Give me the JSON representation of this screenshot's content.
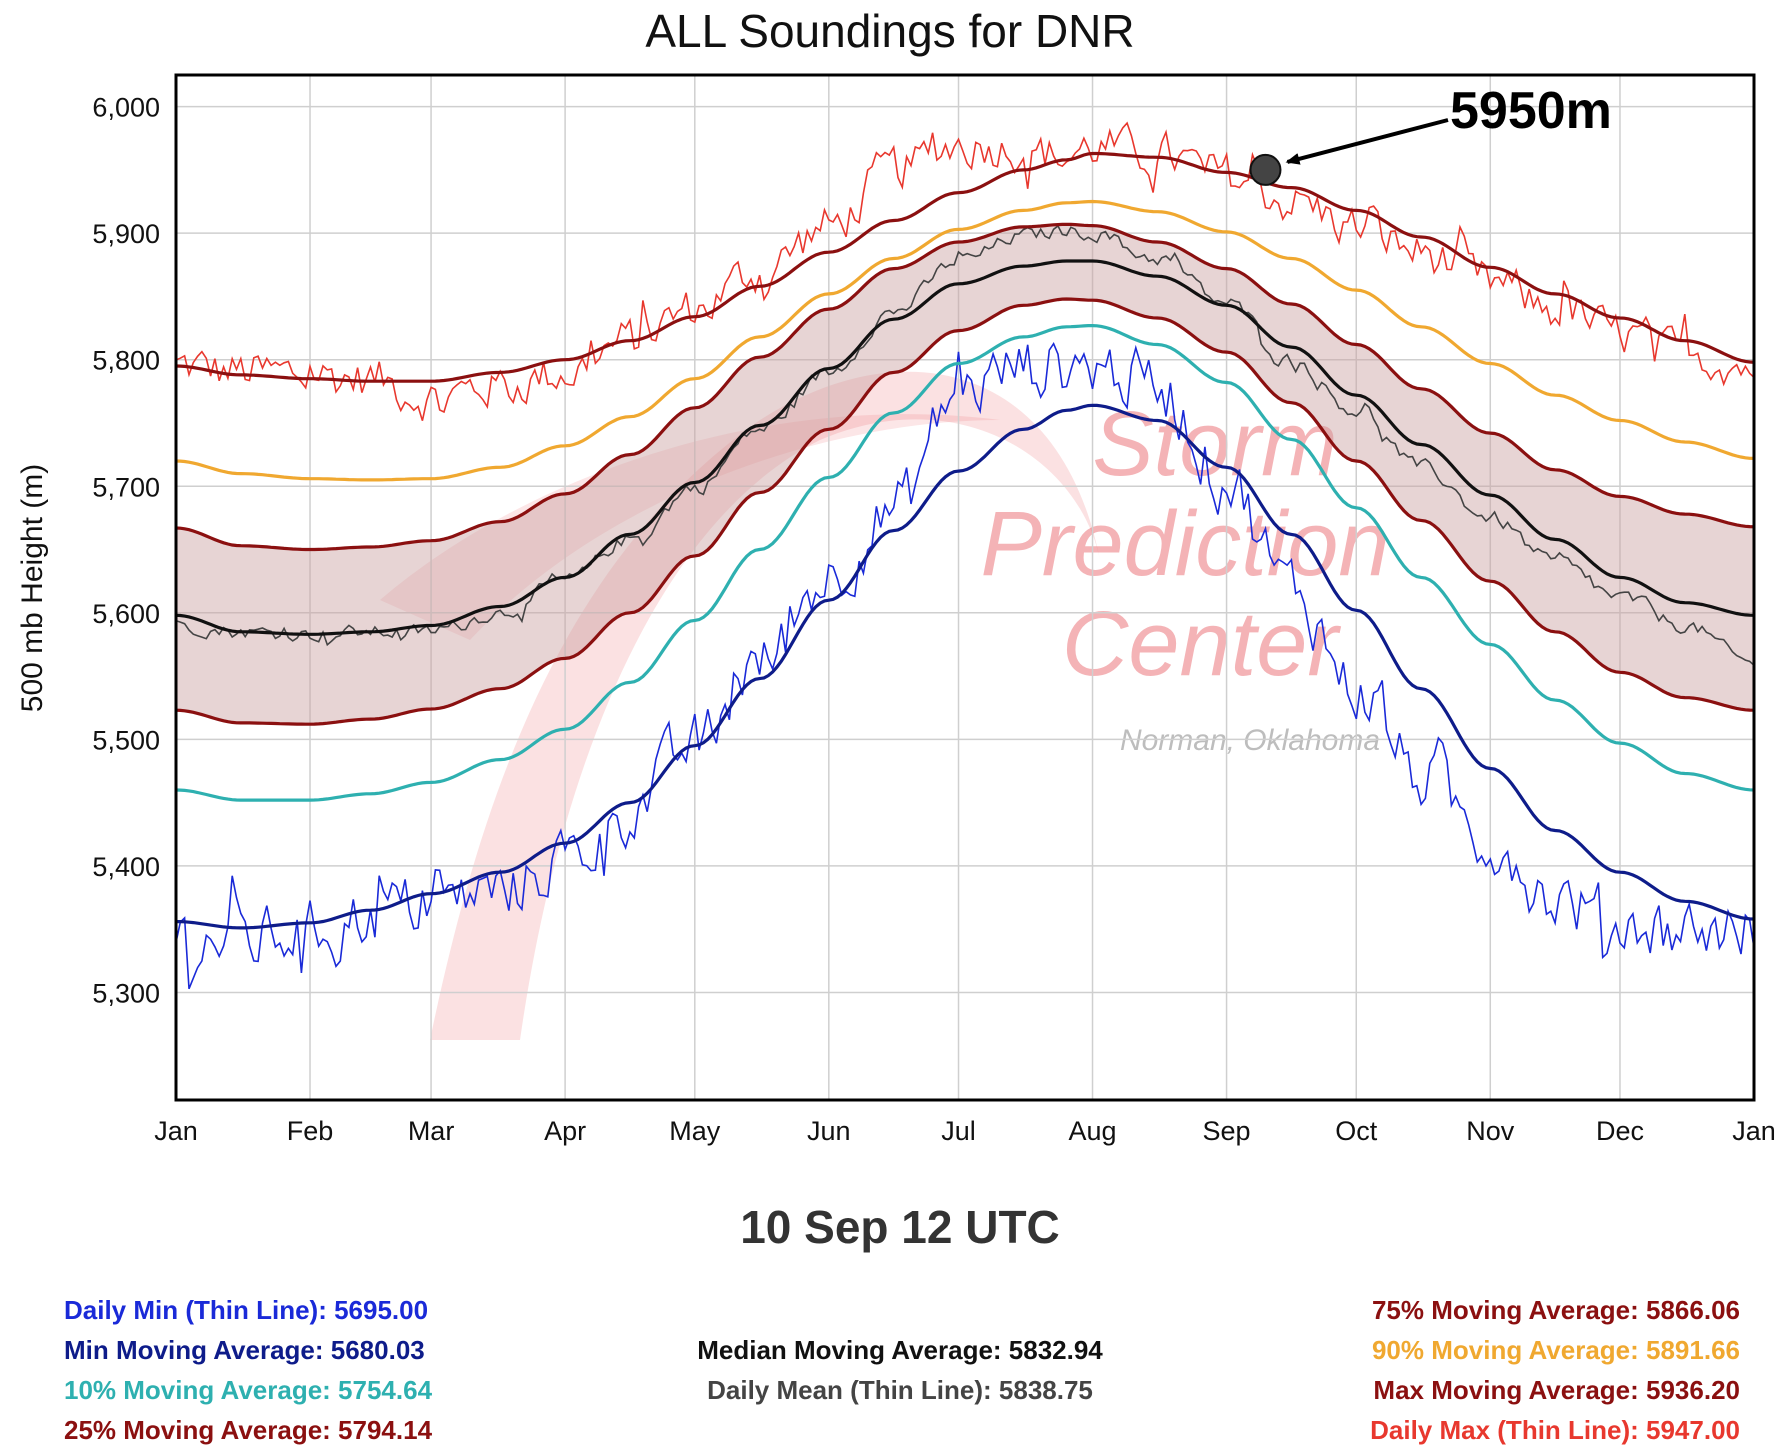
{
  "title": "ALL Soundings for DNR",
  "timestamp": "10 Sep 12 UTC",
  "watermark": {
    "lines": [
      "Storm",
      "Prediction",
      "Center"
    ],
    "sub": "Norman, Oklahoma",
    "color": "#e8585f"
  },
  "colors": {
    "daily_max": "#e8382e",
    "max_ma": "#8b1010",
    "p90_ma": "#f0a830",
    "p75_ma": "#8b1010",
    "median_ma": "#111111",
    "daily_mean": "#444444",
    "p25_ma": "#8b1010",
    "p10_ma": "#2eb0b0",
    "min_ma": "#0e1c8a",
    "daily_min": "#1a2ad8",
    "band_fill": "#c9a0a0"
  },
  "stats": {
    "left": [
      {
        "label": "Daily Min (Thin Line):",
        "value": "5695.00",
        "color": "#1a2ad8"
      },
      {
        "label": "Min Moving Average:",
        "value": "5680.03",
        "color": "#0e1c8a"
      },
      {
        "label": "10% Moving Average:",
        "value": "5754.64",
        "color": "#2eb0b0"
      },
      {
        "label": "25% Moving Average:",
        "value": "5794.14",
        "color": "#8b1010"
      }
    ],
    "center": [
      {
        "label": "Median Moving Average:",
        "value": "5832.94",
        "color": "#111111"
      },
      {
        "label": "Daily Mean (Thin Line):",
        "value": "5838.75",
        "color": "#444444"
      }
    ],
    "right": [
      {
        "label": "75% Moving Average:",
        "value": "5866.06",
        "color": "#8b1010"
      },
      {
        "label": "90% Moving Average:",
        "value": "5891.66",
        "color": "#f0a830"
      },
      {
        "label": "Max Moving Average:",
        "value": "5936.20",
        "color": "#8b1010"
      },
      {
        "label": "Daily Max (Thin Line):",
        "value": "5947.00",
        "color": "#e8382e"
      }
    ]
  },
  "chart_data": {
    "type": "line",
    "title": "ALL Soundings for DNR",
    "ylabel": "500 mb Height (m)",
    "xlabel": "",
    "xlim": [
      0,
      365
    ],
    "ylim": [
      5215,
      6025
    ],
    "y_ticks": [
      {
        "value": 5300,
        "label": "5,300"
      },
      {
        "value": 5400,
        "label": "5,400"
      },
      {
        "value": 5500,
        "label": "5,500"
      },
      {
        "value": 5600,
        "label": "5,600"
      },
      {
        "value": 5700,
        "label": "5,700"
      },
      {
        "value": 5800,
        "label": "5,800"
      },
      {
        "value": 5900,
        "label": "5,900"
      },
      {
        "value": 6000,
        "label": "6,000"
      }
    ],
    "x_ticks": [
      {
        "value": 0,
        "label": "Jan"
      },
      {
        "value": 31,
        "label": "Feb"
      },
      {
        "value": 59,
        "label": "Mar"
      },
      {
        "value": 90,
        "label": "Apr"
      },
      {
        "value": 120,
        "label": "May"
      },
      {
        "value": 151,
        "label": "Jun"
      },
      {
        "value": 181,
        "label": "Jul"
      },
      {
        "value": 212,
        "label": "Aug"
      },
      {
        "value": 243,
        "label": "Sep"
      },
      {
        "value": 273,
        "label": "Oct"
      },
      {
        "value": 304,
        "label": "Nov"
      },
      {
        "value": 334,
        "label": "Dec"
      },
      {
        "value": 365,
        "label": "Jan"
      }
    ],
    "grid": true,
    "x": [
      0,
      15,
      31,
      45,
      59,
      75,
      90,
      105,
      120,
      135,
      151,
      166,
      181,
      196,
      206,
      212,
      227,
      243,
      258,
      273,
      288,
      304,
      319,
      334,
      349,
      365
    ],
    "series": [
      {
        "key": "max_ma",
        "values": [
          5795,
          5788,
          5785,
          5783,
          5783,
          5790,
          5800,
          5815,
          5834,
          5858,
          5885,
          5910,
          5932,
          5950,
          5958,
          5963,
          5960,
          5948,
          5936,
          5918,
          5897,
          5873,
          5852,
          5833,
          5815,
          5798
        ]
      },
      {
        "key": "p90_ma",
        "values": [
          5720,
          5710,
          5706,
          5705,
          5706,
          5715,
          5732,
          5755,
          5785,
          5818,
          5852,
          5880,
          5903,
          5918,
          5924,
          5925,
          5917,
          5901,
          5880,
          5855,
          5826,
          5797,
          5772,
          5752,
          5735,
          5722
        ]
      },
      {
        "key": "p75_ma",
        "values": [
          5667,
          5653,
          5650,
          5652,
          5657,
          5672,
          5694,
          5725,
          5762,
          5802,
          5840,
          5872,
          5893,
          5905,
          5907,
          5906,
          5893,
          5872,
          5844,
          5812,
          5777,
          5742,
          5713,
          5692,
          5678,
          5668
        ]
      },
      {
        "key": "median_ma",
        "values": [
          5598,
          5585,
          5583,
          5585,
          5590,
          5605,
          5628,
          5662,
          5703,
          5748,
          5793,
          5832,
          5860,
          5874,
          5878,
          5878,
          5866,
          5843,
          5810,
          5772,
          5733,
          5693,
          5658,
          5628,
          5608,
          5598
        ]
      },
      {
        "key": "p25_ma",
        "values": [
          5523,
          5513,
          5512,
          5516,
          5524,
          5540,
          5564,
          5600,
          5645,
          5695,
          5745,
          5790,
          5823,
          5843,
          5848,
          5847,
          5833,
          5806,
          5766,
          5720,
          5673,
          5625,
          5585,
          5553,
          5533,
          5523
        ]
      },
      {
        "key": "p10_ma",
        "values": [
          5460,
          5452,
          5452,
          5457,
          5466,
          5484,
          5508,
          5545,
          5594,
          5650,
          5707,
          5758,
          5797,
          5818,
          5826,
          5827,
          5812,
          5782,
          5737,
          5683,
          5628,
          5575,
          5531,
          5497,
          5473,
          5460
        ]
      },
      {
        "key": "min_ma",
        "values": [
          5356,
          5351,
          5355,
          5365,
          5378,
          5395,
          5418,
          5450,
          5495,
          5548,
          5610,
          5665,
          5712,
          5745,
          5760,
          5764,
          5752,
          5715,
          5662,
          5602,
          5540,
          5477,
          5428,
          5395,
          5372,
          5358
        ]
      },
      {
        "key": "daily_max",
        "noisy": true,
        "amp": 28,
        "values": [
          5795,
          5790,
          5788,
          5785,
          5770,
          5780,
          5790,
          5815,
          5840,
          5870,
          5905,
          5950,
          5970,
          5968,
          5960,
          5968,
          5962,
          5945,
          5925,
          5905,
          5885,
          5860,
          5840,
          5820,
          5805,
          5795
        ]
      },
      {
        "key": "daily_mean",
        "noisy": true,
        "amp": 9,
        "values": [
          5590,
          5585,
          5583,
          5585,
          5585,
          5600,
          5625,
          5658,
          5698,
          5745,
          5790,
          5838,
          5878,
          5898,
          5902,
          5900,
          5880,
          5845,
          5800,
          5760,
          5715,
          5675,
          5640,
          5612,
          5590,
          5560
        ]
      },
      {
        "key": "daily_min",
        "noisy": true,
        "amp": 40,
        "values": [
          5345,
          5340,
          5350,
          5362,
          5370,
          5380,
          5405,
          5445,
          5495,
          5560,
          5630,
          5680,
          5775,
          5795,
          5795,
          5795,
          5780,
          5705,
          5620,
          5540,
          5470,
          5420,
          5375,
          5355,
          5350,
          5350
        ]
      }
    ],
    "annotation": {
      "label": "5950m",
      "day": 252,
      "value": 5950
    }
  }
}
